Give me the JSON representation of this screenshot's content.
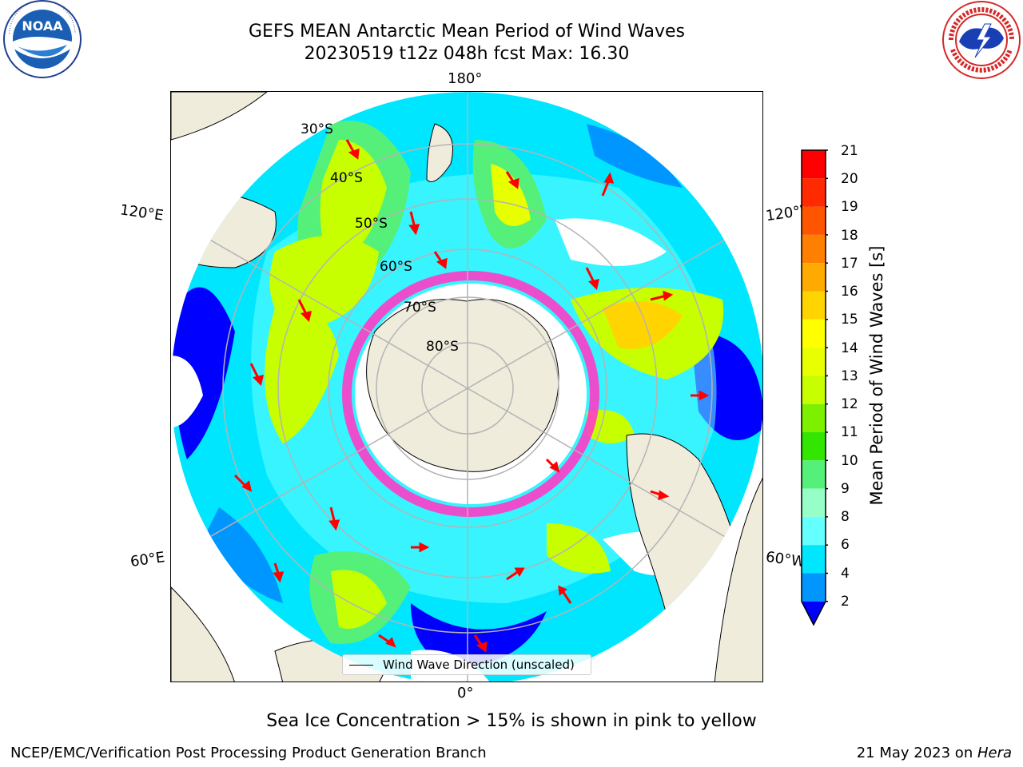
{
  "header": {
    "title_line1": "GEFS MEAN Antarctic Mean Period of Wind Waves",
    "title_line2": "20230519 t12z 048h fcst   Max: 16.30"
  },
  "logos": {
    "left_name": "NOAA",
    "right_name": "NATIONAL WEATHER SERVICE"
  },
  "map": {
    "projection": "south-polar-stereographic",
    "lon_labels": {
      "top": "180°",
      "bottom": "0°",
      "left_upper": "120°E",
      "left_lower": "60°E",
      "right_upper": "120°W",
      "right_lower": "60°W"
    },
    "lat_labels": [
      "30°S",
      "40°S",
      "50°S",
      "60°S",
      "70°S",
      "80°S"
    ],
    "legend_label": "Wind Wave Direction (unscaled)",
    "arrow_color": "#ff0000",
    "land_color": "#efecdc",
    "sea_ice_color": "#ff3cc8"
  },
  "colorbar": {
    "label": "Mean Period of Wind Waves [s]",
    "ticks": [
      "21",
      "20",
      "19",
      "18",
      "17",
      "16",
      "15",
      "14",
      "13",
      "12",
      "11",
      "10",
      "9",
      "8",
      "6",
      "4",
      "2"
    ],
    "colors_top_to_bottom": [
      "#ff0000",
      "#ff2a00",
      "#ff5500",
      "#ff8000",
      "#ffaa00",
      "#ffd400",
      "#ffff00",
      "#e8ff00",
      "#c8ff00",
      "#7df000",
      "#32e600",
      "#55f07a",
      "#96ffc8",
      "#64ffff",
      "#00e6ff",
      "#0096ff",
      "#0000ff"
    ]
  },
  "footer": {
    "note": "Sea Ice Concentration > 15% is shown in pink to yellow",
    "left": "NCEP/EMC/Verification Post Processing Product Generation Branch",
    "right_prefix": "21 May 2023 on ",
    "right_host": "Hera"
  }
}
